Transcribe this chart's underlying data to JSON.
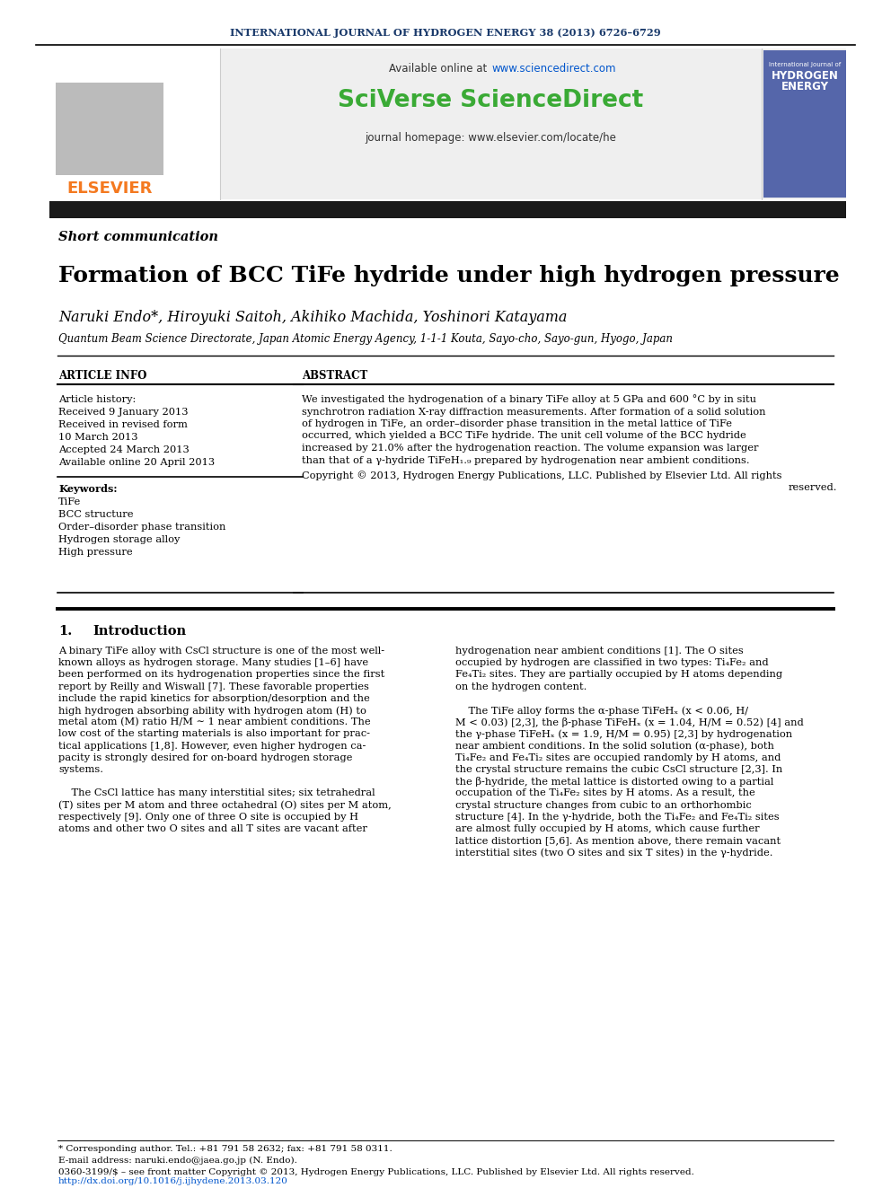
{
  "journal_header": "INTERNATIONAL JOURNAL OF HYDROGEN ENERGY 38 (2013) 6726–6729",
  "available_online": "Available online at ",
  "sciencedirect_url": "www.sciencedirect.com",
  "sciverse_text": "SciVerse ScienceDirect",
  "journal_homepage": "journal homepage: www.elsevier.com/locate/he",
  "section_tag": "Short communication",
  "title": "Formation of BCC TiFe hydride under high hydrogen pressure",
  "authors": "Naruki Endo*, Hiroyuki Saitoh, Akihiko Machida, Yoshinori Katayama",
  "affiliation": "Quantum Beam Science Directorate, Japan Atomic Energy Agency, 1-1-1 Kouta, Sayo-cho, Sayo-gun, Hyogo, Japan",
  "article_info_label": "ARTICLE INFO",
  "abstract_label": "ABSTRACT",
  "article_history_label": "Article history:",
  "received1": "Received 9 January 2013",
  "revised": "Received in revised form",
  "revised2": "10 March 2013",
  "accepted": "Accepted 24 March 2013",
  "available": "Available online 20 April 2013",
  "keywords_label": "Keywords:",
  "keywords": [
    "TiFe",
    "BCC structure",
    "Order–disorder phase transition",
    "Hydrogen storage alloy",
    "High pressure"
  ],
  "abstract_text_line1": "We investigated the hydrogenation of a binary TiFe alloy at 5 GPa and 600 °C by in situ",
  "abstract_text_line2": "synchrotron radiation X-ray diffraction measurements. After formation of a solid solution",
  "abstract_text_line3": "of hydrogen in TiFe, an order–disorder phase transition in the metal lattice of TiFe",
  "abstract_text_line4": "occurred, which yielded a BCC TiFe hydride. The unit cell volume of the BCC hydride",
  "abstract_text_line5": "increased by 21.0% after the hydrogenation reaction. The volume expansion was larger",
  "abstract_text_line6": "than that of a γ-hydride TiFeH₁.₉ prepared by hydrogenation near ambient conditions.",
  "abstract_copyright1": "Copyright © 2013, Hydrogen Energy Publications, LLC. Published by Elsevier Ltd. All rights",
  "abstract_copyright2": "reserved.",
  "intro_number": "1.",
  "intro_title": "Introduction",
  "intro_left_lines": [
    "A binary TiFe alloy with CsCl structure is one of the most well-",
    "known alloys as hydrogen storage. Many studies [1–6] have",
    "been performed on its hydrogenation properties since the first",
    "report by Reilly and Wiswall [7]. These favorable properties",
    "include the rapid kinetics for absorption/desorption and the",
    "high hydrogen absorbing ability with hydrogen atom (H) to",
    "metal atom (M) ratio H/M ∼ 1 near ambient conditions. The",
    "low cost of the starting materials is also important for prac-",
    "tical applications [1,8]. However, even higher hydrogen ca-",
    "pacity is strongly desired for on-board hydrogen storage",
    "systems.",
    "",
    "    The CsCl lattice has many interstitial sites; six tetrahedral",
    "(T) sites per M atom and three octahedral (O) sites per M atom,",
    "respectively [9]. Only one of three O site is occupied by H",
    "atoms and other two O sites and all T sites are vacant after"
  ],
  "intro_right_lines": [
    "hydrogenation near ambient conditions [1]. The O sites",
    "occupied by hydrogen are classified in two types: Ti₄Fe₂ and",
    "Fe₄Ti₂ sites. They are partially occupied by H atoms depending",
    "on the hydrogen content.",
    "",
    "    The TiFe alloy forms the α-phase TiFeHₓ (x < 0.06, H/",
    "M < 0.03) [2,3], the β-phase TiFeHₓ (x = 1.04, H/M = 0.52) [4] and",
    "the γ-phase TiFeHₓ (x = 1.9, H/M = 0.95) [2,3] by hydrogenation",
    "near ambient conditions. In the solid solution (α-phase), both",
    "Ti₄Fe₂ and Fe₄Ti₂ sites are occupied randomly by H atoms, and",
    "the crystal structure remains the cubic CsCl structure [2,3]. In",
    "the β-hydride, the metal lattice is distorted owing to a partial",
    "occupation of the Ti₄Fe₂ sites by H atoms. As a result, the",
    "crystal structure changes from cubic to an orthorhombic",
    "structure [4]. In the γ-hydride, both the Ti₄Fe₂ and Fe₄Ti₂ sites",
    "are almost fully occupied by H atoms, which cause further",
    "lattice distortion [5,6]. As mention above, there remain vacant",
    "interstitial sites (two O sites and six T sites) in the γ-hydride."
  ],
  "footer_text": "* Corresponding author. Tel.: +81 791 58 2632; fax: +81 791 58 0311.",
  "footer_email": "E-mail address: naruki.endo@jaea.go.jp (N. Endo).",
  "footer_issn": "0360-3199/$ – see front matter Copyright © 2013, Hydrogen Energy Publications, LLC. Published by Elsevier Ltd. All rights reserved.",
  "footer_doi": "http://dx.doi.org/10.1016/j.ijhydene.2013.03.120",
  "bg_color": "#ffffff",
  "header_bg": "#efefef",
  "elsevier_orange": "#f47920",
  "journal_header_color": "#1a3a6b",
  "sciencedirect_green": "#3aaa35",
  "url_color": "#0055cc",
  "dark_bar_color": "#1a1a1a"
}
